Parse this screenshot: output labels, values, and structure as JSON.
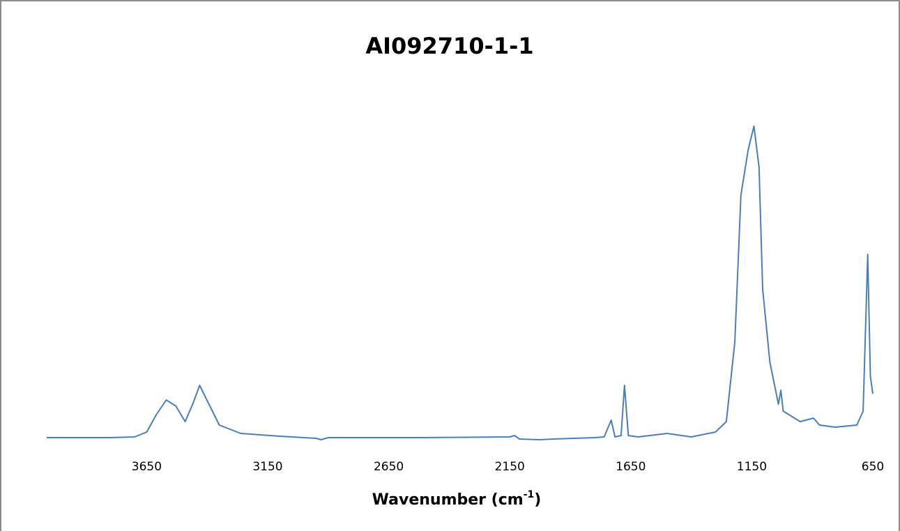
{
  "chart_data": {
    "type": "line",
    "title": "AI092710-1-1",
    "x_label": [
      "Wavenumber (cm",
      "-1",
      ")"
    ],
    "xlim": [
      4063,
      650
    ],
    "xticks": [
      3650,
      3150,
      2650,
      2150,
      1650,
      1150,
      650
    ],
    "ylim": [
      0,
      1
    ],
    "grid": false,
    "x": [
      4063,
      3800,
      3700,
      3650,
      3610,
      3569,
      3530,
      3491,
      3460,
      3431,
      3400,
      3350,
      3261,
      3100,
      2950,
      2930,
      2900,
      2500,
      2150,
      2130,
      2110,
      2026,
      1969,
      1800,
      1760,
      1731,
      1715,
      1690,
      1676,
      1660,
      1620,
      1500,
      1400,
      1300,
      1255,
      1220,
      1195,
      1165,
      1141,
      1120,
      1105,
      1075,
      1040,
      1030,
      1020,
      950,
      895,
      870,
      806,
      716,
      690,
      671,
      660,
      650
    ],
    "series": [
      {
        "color": "#4a7ebb",
        "values": [
          0.024,
          0.024,
          0.026,
          0.04,
          0.09,
          0.132,
          0.115,
          0.07,
          0.12,
          0.174,
          0.13,
          0.06,
          0.036,
          0.028,
          0.022,
          0.018,
          0.024,
          0.024,
          0.026,
          0.03,
          0.02,
          0.018,
          0.02,
          0.024,
          0.026,
          0.074,
          0.026,
          0.03,
          0.174,
          0.03,
          0.026,
          0.036,
          0.026,
          0.04,
          0.07,
          0.3,
          0.72,
          0.85,
          0.918,
          0.8,
          0.45,
          0.24,
          0.12,
          0.16,
          0.1,
          0.07,
          0.08,
          0.06,
          0.054,
          0.06,
          0.1,
          0.55,
          0.2,
          0.15
        ]
      }
    ]
  }
}
